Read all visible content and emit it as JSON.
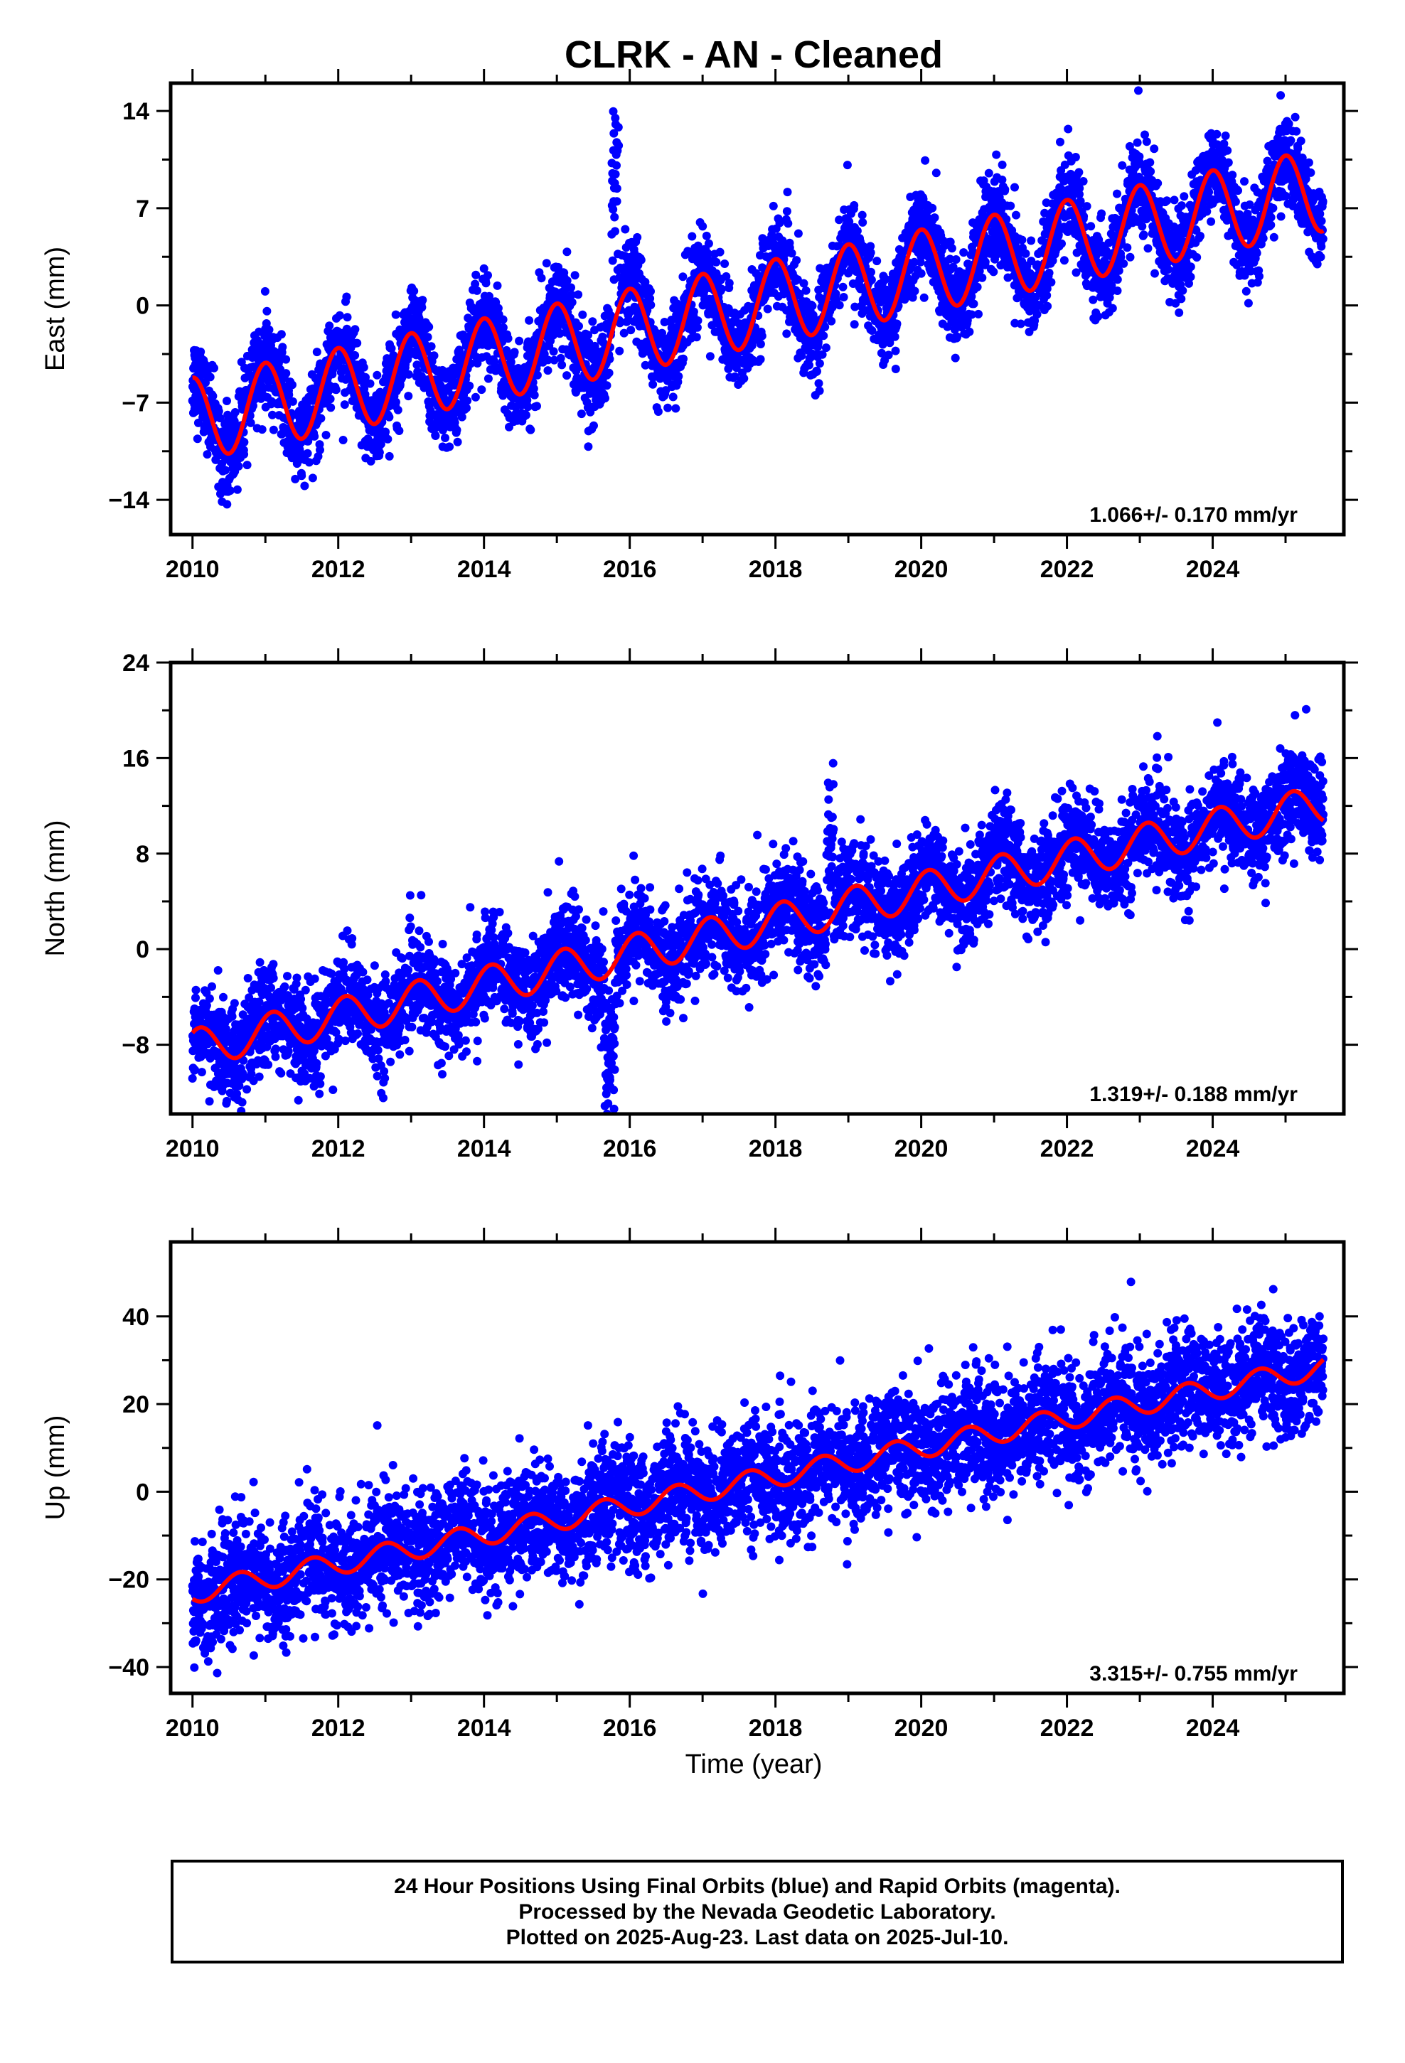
{
  "title": "CLRK  - AN - Cleaned",
  "xlabel": "Time (year)",
  "caption": {
    "line1": "24 Hour Positions Using Final Orbits (blue) and Rapid Orbits (magenta).",
    "line2": "Processed by the Nevada Geodetic Laboratory.",
    "line3": "Plotted on 2025-Aug-23. Last data on 2025-Jul-10."
  },
  "colors": {
    "final_orbits": "#0000ff",
    "model": "#ff0000",
    "frame": "#000000"
  },
  "chart_data": [
    {
      "type": "scatter",
      "component": "East",
      "ylabel": "East (mm)",
      "xlim": [
        2009.7,
        2025.8
      ],
      "ylim": [
        -16.5,
        16
      ],
      "x_ticks": [
        2010,
        2012,
        2014,
        2016,
        2018,
        2020,
        2022,
        2024
      ],
      "y_ticks": [
        -14,
        -7,
        0,
        7,
        14
      ],
      "rate_label": "1.066+/- 0.170 mm/yr",
      "trend": {
        "rate": 1.066,
        "intercept": -8.2,
        "annual_amp": 3.0,
        "annual_phase_year": 0.75
      },
      "scatter_sd": 1.6,
      "outliers": [
        {
          "start": 2015.75,
          "end": 2015.85,
          "offset": 11
        }
      ]
    },
    {
      "type": "scatter",
      "component": "North",
      "ylabel": "North (mm)",
      "xlim": [
        2009.7,
        2025.8
      ],
      "ylim": [
        -13.8,
        24
      ],
      "x_ticks": [
        2010,
        2012,
        2014,
        2016,
        2018,
        2020,
        2022,
        2024
      ],
      "y_ticks": [
        -8,
        0,
        8,
        16,
        24
      ],
      "rate_label": "1.319+/- 0.188 mm/yr",
      "trend": {
        "rate": 1.319,
        "intercept": -8.3,
        "annual_amp": 1.6,
        "annual_phase_year": 0.85
      },
      "scatter_sd": 2.0,
      "outliers": [
        {
          "start": 2015.65,
          "end": 2015.8,
          "offset": -8
        },
        {
          "start": 2018.7,
          "end": 2018.8,
          "offset": 8
        }
      ]
    },
    {
      "type": "scatter",
      "component": "Up",
      "ylabel": "Up (mm)",
      "xlim": [
        2009.7,
        2025.8
      ],
      "ylim": [
        -46,
        57
      ],
      "x_ticks": [
        2010,
        2012,
        2014,
        2016,
        2018,
        2020,
        2022,
        2024
      ],
      "y_ticks": [
        -40,
        -20,
        0,
        20,
        40
      ],
      "rate_label": "3.315+/- 0.755 mm/yr",
      "trend": {
        "rate": 3.315,
        "intercept": -23,
        "annual_amp": 2.5,
        "annual_phase_year": 0.4
      },
      "scatter_sd": 6.5,
      "outliers": []
    }
  ],
  "data_range": {
    "start": 2010.0,
    "end": 2025.52
  }
}
